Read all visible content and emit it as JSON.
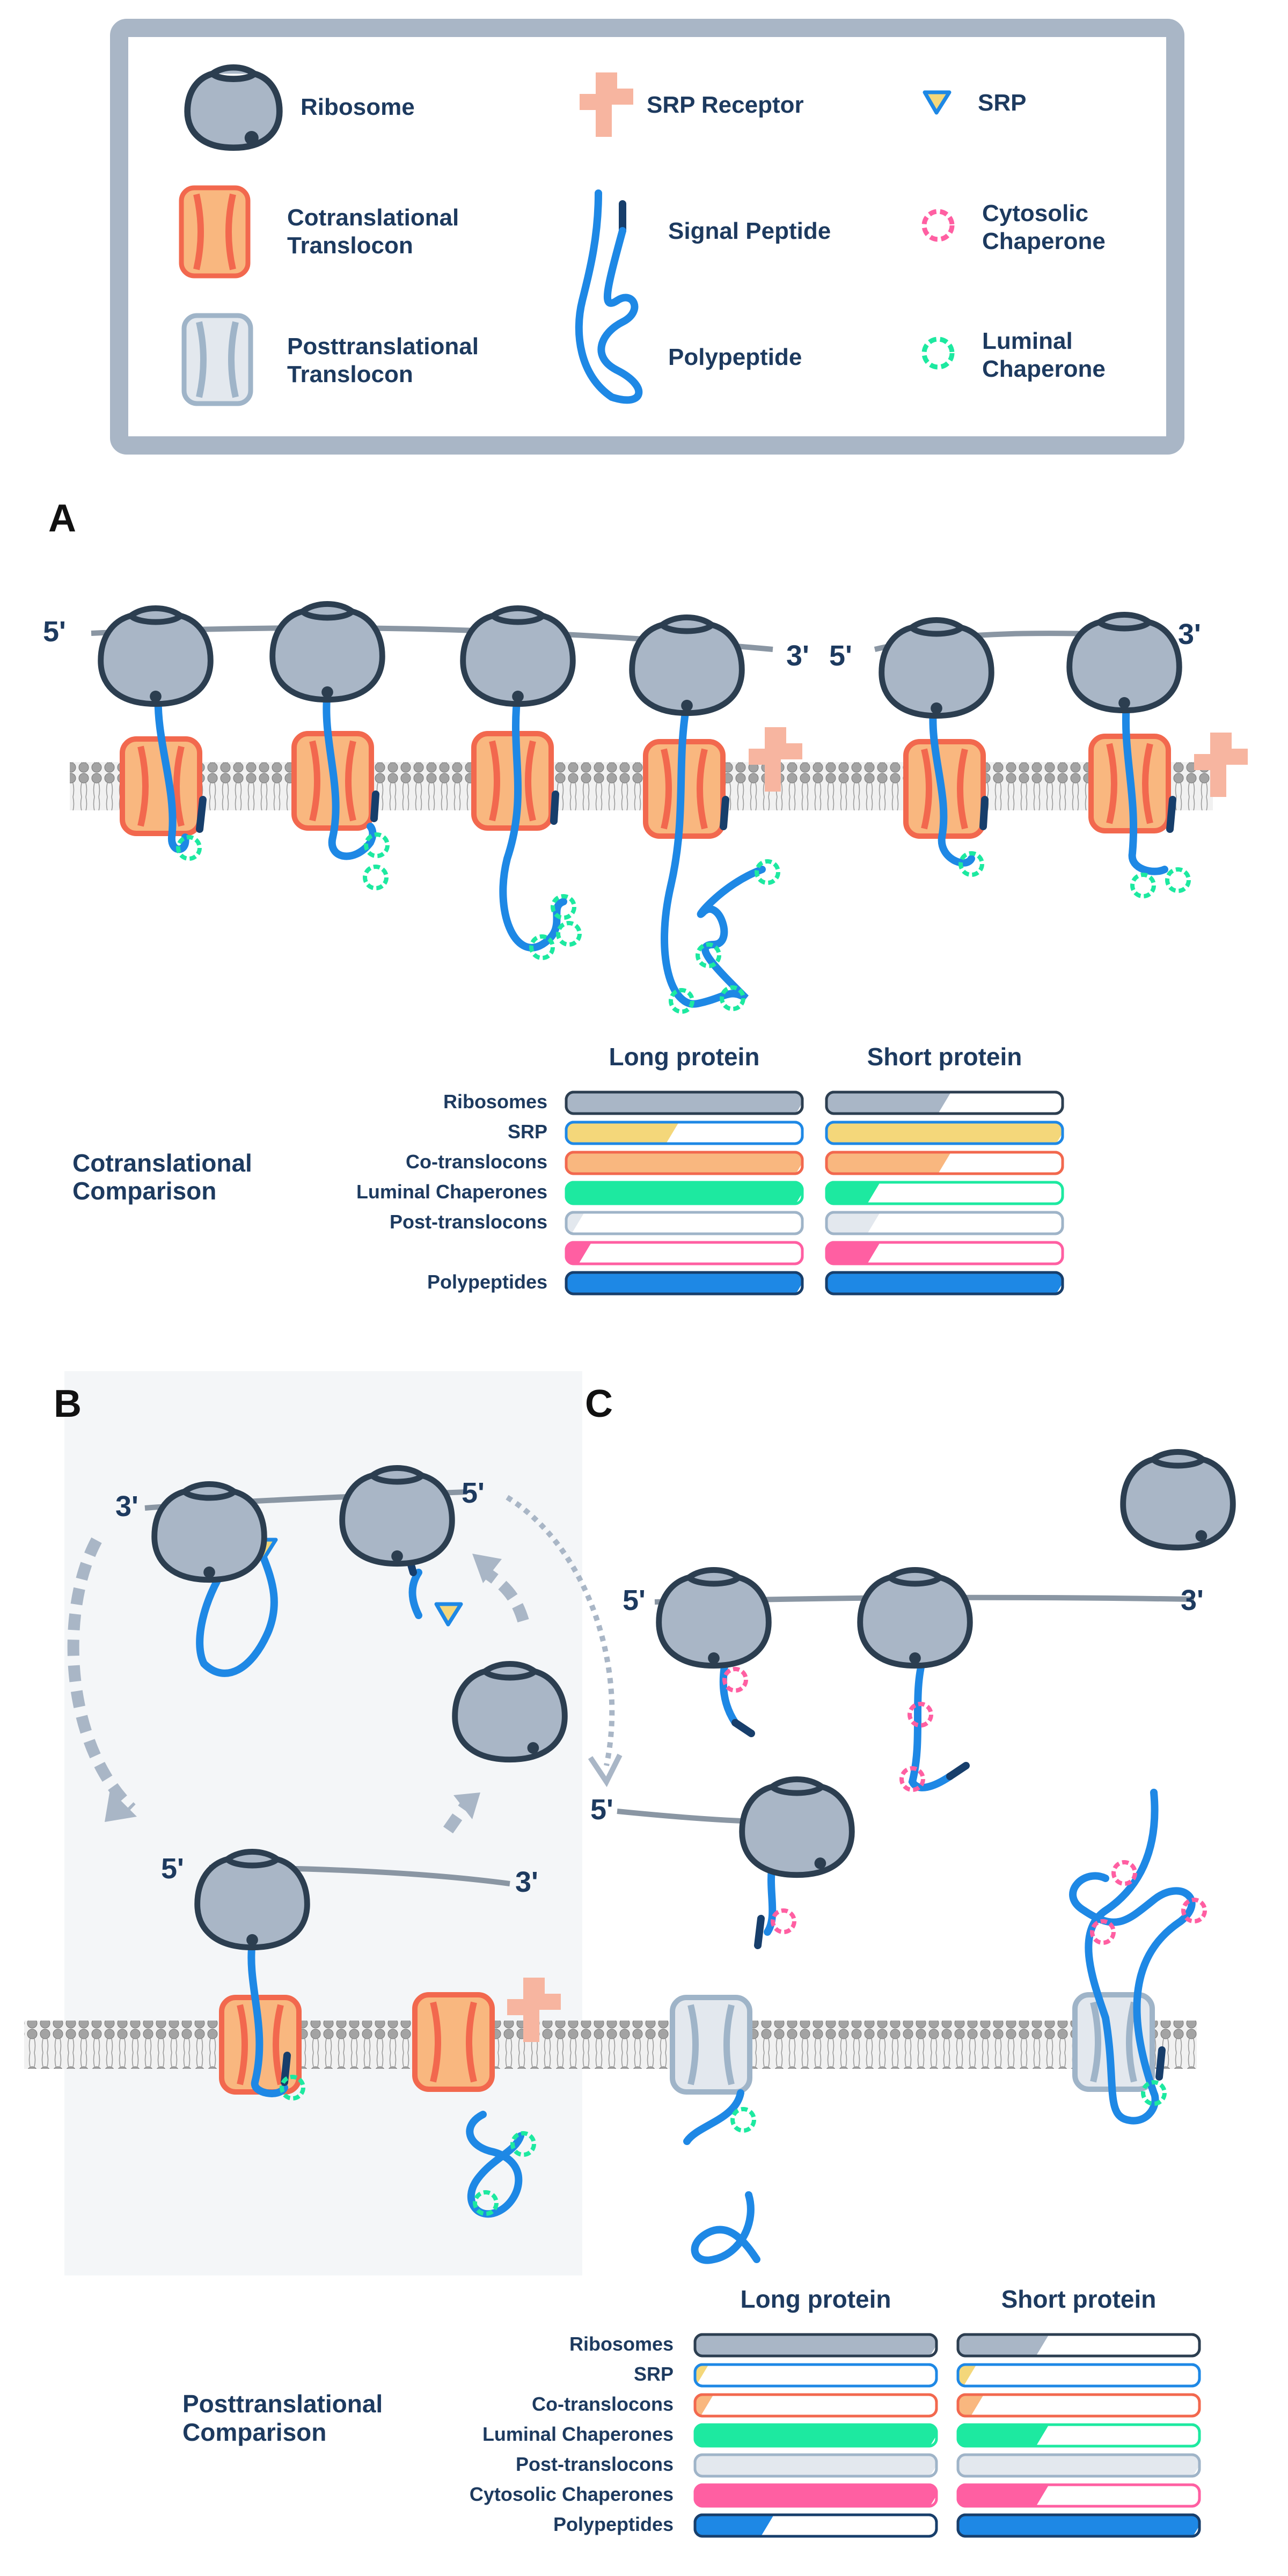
{
  "legend": {
    "ribosome": "Ribosome",
    "cotranslational_translocon": [
      "Cotranslational",
      "Translocon"
    ],
    "posttranslational_translocon": [
      "Posttranslational",
      "Translocon"
    ],
    "srp_receptor": "SRP Receptor",
    "signal_peptide": "Signal Peptide",
    "polypeptide": "Polypeptide",
    "srp": "SRP",
    "cytosolic_chaperone": [
      "Cytosolic",
      "Chaperone"
    ],
    "luminal_chaperone": [
      "Luminal",
      "Chaperone"
    ]
  },
  "panels": {
    "a": "A",
    "b": "B",
    "c": "C"
  },
  "mrna_ends": {
    "five_prime": "5'",
    "three_prime": "3'"
  },
  "colors": {
    "ribosome": "#a9b6c6",
    "outline": "#2c3e50",
    "cotranslocon_fill": "#f9b77f",
    "cotranslocon_stroke": "#f2684e",
    "posttranslocon_fill": "#e3e8ee",
    "posttranslocon_stroke": "#9fb4c8",
    "srp_receptor": "#f7b5a0",
    "polypeptide": "#1e88e5",
    "signal_peptide": "#173e6b",
    "cytosolic_chaperone": "#ff5fa2",
    "luminal_chaperone": "#1de9a0",
    "srp_fill": "#f4d77a",
    "membrane": "#9a9a9a"
  },
  "icons": [
    "ribosome-icon",
    "cotranslocon-icon",
    "posttranslocon-icon",
    "srp-receptor-icon",
    "polypeptide-icon",
    "srp-icon",
    "cytosolic-chaperone-icon",
    "luminal-chaperone-icon"
  ],
  "comparisons": [
    {
      "title": [
        "Cotranslational",
        "Comparison"
      ],
      "columns": [
        "Long protein",
        "Short protein"
      ],
      "rows": [
        {
          "label": "Ribosomes",
          "color": "#a9b6c6",
          "stroke": "#2c3e50",
          "long": 1.0,
          "short": 0.5
        },
        {
          "label": "SRP",
          "color": "#f4d77a",
          "stroke": "#1e88e5",
          "long": 0.45,
          "short": 1.0
        },
        {
          "label": "Co-translocons",
          "color": "#f9b77f",
          "stroke": "#f2684e",
          "long": 1.0,
          "short": 0.5
        },
        {
          "label": "Luminal Chaperones",
          "color": "#1de9a0",
          "stroke": "#1de9a0",
          "long": 1.0,
          "short": 0.2
        },
        {
          "label": "Post-translocons",
          "color": "#e3e8ee",
          "stroke": "#9fb4c8",
          "long": 0.05,
          "short": 0.2
        },
        {
          "label": "",
          "color": "#ff5fa2",
          "stroke": "#ff5fa2",
          "long": 0.08,
          "short": 0.2
        },
        {
          "label": "Polypeptides",
          "color": "#1e88e5",
          "stroke": "#173e6b",
          "long": 1.0,
          "short": 1.0
        }
      ]
    },
    {
      "title": [
        "Posttranslational",
        "Comparison"
      ],
      "columns": [
        "Long protein",
        "Short protein"
      ],
      "rows": [
        {
          "label": "Ribosomes",
          "color": "#a9b6c6",
          "stroke": "#2c3e50",
          "long": 1.0,
          "short": 0.35
        },
        {
          "label": "SRP",
          "color": "#f4d77a",
          "stroke": "#1e88e5",
          "long": 0.03,
          "short": 0.05
        },
        {
          "label": "Co-translocons",
          "color": "#f9b77f",
          "stroke": "#f2684e",
          "long": 0.05,
          "short": 0.08
        },
        {
          "label": "Luminal Chaperones",
          "color": "#1de9a0",
          "stroke": "#1de9a0",
          "long": 1.0,
          "short": 0.35
        },
        {
          "label": "Post-translocons",
          "color": "#e3e8ee",
          "stroke": "#9fb4c8",
          "long": 1.0,
          "short": 1.0
        },
        {
          "label": "Cytosolic Chaperones",
          "color": "#ff5fa2",
          "stroke": "#ff5fa2",
          "long": 1.0,
          "short": 0.35
        },
        {
          "label": "Polypeptides",
          "color": "#1e88e5",
          "stroke": "#173e6b",
          "long": 0.3,
          "short": 1.0
        }
      ]
    }
  ]
}
